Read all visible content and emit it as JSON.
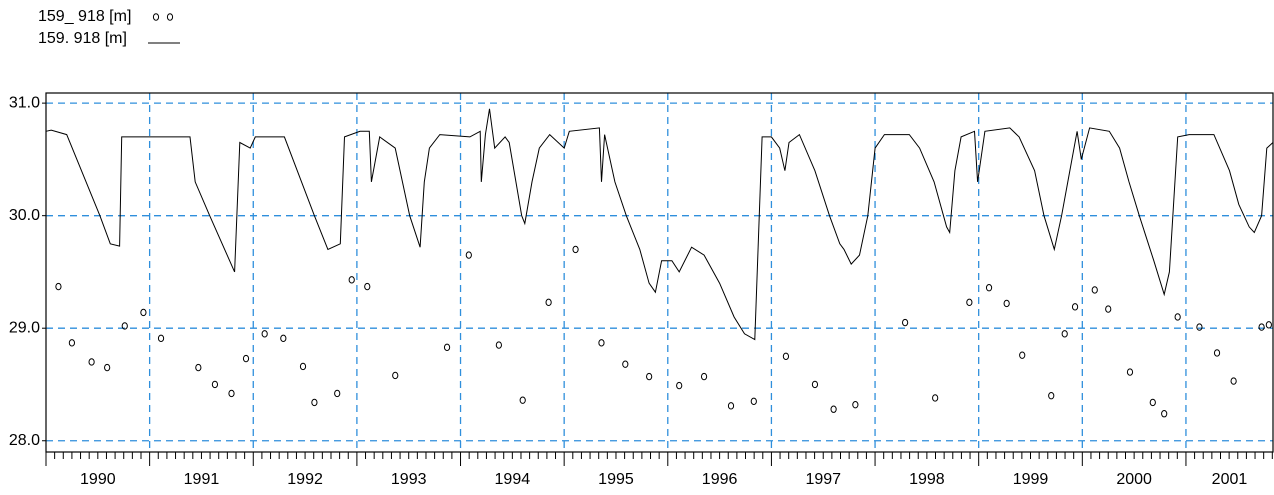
{
  "chart_data": {
    "type": "line",
    "legend": "top-left",
    "grid": true,
    "grid_color": "#2f8fdc",
    "xminor": 12,
    "xlim": [
      1990,
      2001.84
    ],
    "xticks": [
      1990,
      1991,
      1992,
      1993,
      1994,
      1995,
      1996,
      1997,
      1998,
      1999,
      2000,
      2001
    ],
    "ylim": [
      27.9,
      31.09
    ],
    "yticks": [
      {
        "value": 28,
        "label": "28.0"
      },
      {
        "value": 29,
        "label": "29.0"
      },
      {
        "value": 30,
        "label": "30.0"
      },
      {
        "value": 31,
        "label": "31.0"
      }
    ],
    "series": [
      {
        "name": "159_ 918 [m]",
        "color": "#000000",
        "style": "markers",
        "x": [
          1990.12,
          1990.25,
          1990.44,
          1990.59,
          1990.76,
          1990.94,
          1991.11,
          1991.47,
          1991.63,
          1991.79,
          1991.93,
          1992.11,
          1992.29,
          1992.48,
          1992.59,
          1992.81,
          1992.95,
          1993.1,
          1993.37,
          1993.87,
          1994.08,
          1994.37,
          1994.6,
          1994.85,
          1995.11,
          1995.36,
          1995.59,
          1995.82,
          1996.11,
          1996.35,
          1996.61,
          1996.83,
          1997.14,
          1997.42,
          1997.6,
          1997.81,
          1998.29,
          1998.58,
          1998.91,
          1999.1,
          1999.27,
          1999.42,
          1999.7,
          1999.83,
          1999.93,
          2000.12,
          2000.25,
          2000.46,
          2000.68,
          2000.79,
          2000.92,
          2001.13,
          2001.3,
          2001.46,
          2001.73,
          2001.8
        ],
        "values": [
          29.37,
          28.87,
          28.7,
          28.65,
          29.02,
          29.14,
          28.91,
          28.65,
          28.5,
          28.42,
          28.73,
          28.95,
          28.91,
          28.66,
          28.34,
          28.42,
          29.43,
          29.37,
          28.58,
          28.83,
          29.65,
          28.85,
          28.36,
          29.23,
          29.7,
          28.87,
          28.68,
          28.57,
          28.49,
          28.57,
          28.31,
          28.35,
          28.75,
          28.5,
          28.28,
          28.32,
          29.05,
          28.38,
          29.23,
          29.36,
          29.22,
          28.76,
          28.4,
          28.95,
          29.19,
          29.34,
          29.17,
          28.61,
          28.34,
          28.24,
          29.1,
          29.01,
          28.78,
          28.53,
          29.01,
          29.03
        ]
      },
      {
        "name": "159. 918 [m]",
        "color": "#000000",
        "style": "line",
        "x": [
          1990.0,
          1990.05,
          1990.2,
          1990.52,
          1990.62,
          1990.71,
          1990.73,
          1991.0,
          1991.39,
          1991.44,
          1991.58,
          1991.82,
          1991.87,
          1991.97,
          1992.02,
          1992.3,
          1992.59,
          1992.72,
          1992.84,
          1992.88,
          1993.03,
          1993.12,
          1993.14,
          1993.22,
          1993.37,
          1993.51,
          1993.61,
          1993.65,
          1993.7,
          1993.8,
          1994.09,
          1994.19,
          1994.2,
          1994.24,
          1994.28,
          1994.33,
          1994.43,
          1994.47,
          1994.59,
          1994.62,
          1994.69,
          1994.76,
          1994.86,
          1995.0,
          1995.05,
          1995.34,
          1995.36,
          1995.39,
          1995.49,
          1995.6,
          1995.73,
          1995.82,
          1995.88,
          1995.94,
          1996.04,
          1996.11,
          1996.23,
          1996.35,
          1996.5,
          1996.64,
          1996.74,
          1996.84,
          1996.91,
          1997.0,
          1997.08,
          1997.13,
          1997.17,
          1997.27,
          1997.42,
          1997.56,
          1997.66,
          1997.7,
          1997.77,
          1997.85,
          1997.93,
          1998.0,
          1998.09,
          1998.33,
          1998.43,
          1998.57,
          1998.69,
          1998.72,
          1998.77,
          1998.83,
          1998.96,
          1998.99,
          1999.06,
          1999.3,
          1999.39,
          1999.54,
          1999.63,
          1999.73,
          1999.8,
          1999.86,
          1999.95,
          1999.99,
          2000.07,
          2000.26,
          2000.36,
          2000.45,
          2000.55,
          2000.69,
          2000.79,
          2000.84,
          2000.92,
          2001.03,
          2001.27,
          2001.42,
          2001.51,
          2001.61,
          2001.66,
          2001.73,
          2001.78,
          2001.84
        ],
        "values": [
          30.75,
          30.76,
          30.72,
          30.0,
          29.75,
          29.73,
          30.7,
          30.7,
          30.7,
          30.3,
          30.0,
          29.5,
          30.65,
          30.6,
          30.7,
          30.7,
          30.0,
          29.7,
          29.75,
          30.7,
          30.75,
          30.75,
          30.3,
          30.7,
          30.6,
          30.0,
          29.72,
          30.3,
          30.6,
          30.72,
          30.7,
          30.75,
          30.3,
          30.72,
          30.95,
          30.6,
          30.7,
          30.65,
          30.0,
          29.93,
          30.3,
          30.6,
          30.72,
          30.6,
          30.75,
          30.78,
          30.3,
          30.72,
          30.3,
          30.0,
          29.7,
          29.4,
          29.32,
          29.6,
          29.6,
          29.5,
          29.72,
          29.65,
          29.4,
          29.1,
          28.95,
          28.9,
          30.7,
          30.7,
          30.6,
          30.4,
          30.65,
          30.72,
          30.4,
          30.0,
          29.75,
          29.7,
          29.57,
          29.65,
          30.0,
          30.6,
          30.72,
          30.72,
          30.6,
          30.3,
          29.9,
          29.85,
          30.4,
          30.7,
          30.75,
          30.3,
          30.75,
          30.78,
          30.7,
          30.4,
          30.0,
          29.7,
          30.0,
          30.3,
          30.75,
          30.5,
          30.78,
          30.75,
          30.6,
          30.3,
          30.0,
          29.6,
          29.3,
          29.5,
          30.7,
          30.72,
          30.72,
          30.4,
          30.1,
          29.9,
          29.85,
          30.0,
          30.6,
          30.65
        ]
      }
    ]
  }
}
